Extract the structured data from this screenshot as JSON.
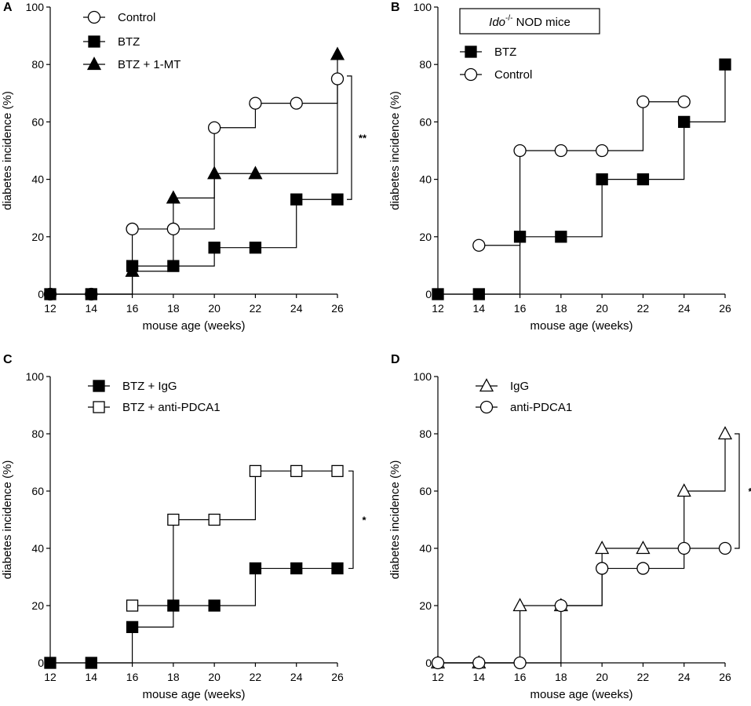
{
  "chart_data": [
    {
      "panel": "A",
      "type": "line",
      "step": true,
      "xlabel": "mouse age (weeks)",
      "ylabel": "diabetes incidence (%)",
      "xlim": [
        12,
        26
      ],
      "ylim": [
        0,
        100
      ],
      "xticks": [
        12,
        14,
        16,
        18,
        20,
        22,
        24,
        26
      ],
      "yticks": [
        0,
        20,
        40,
        60,
        80,
        100
      ],
      "legend_position": "top-left",
      "series": [
        {
          "name": "Control",
          "marker": "circle-open",
          "x": [
            12,
            14,
            16,
            18,
            20,
            22,
            24,
            26
          ],
          "values": [
            0,
            0,
            22.7,
            22.7,
            58,
            66.5,
            66.5,
            75
          ]
        },
        {
          "name": "BTZ",
          "marker": "square-filled",
          "x": [
            12,
            14,
            16,
            18,
            20,
            22,
            24,
            26
          ],
          "values": [
            0,
            0,
            9.8,
            9.8,
            16.2,
            16.2,
            33,
            33
          ]
        },
        {
          "name": "BTZ + 1-MT",
          "marker": "triangle-filled",
          "x": [
            16,
            18,
            20,
            22,
            26
          ],
          "values": [
            8,
            33.5,
            42,
            42,
            83.5
          ]
        }
      ],
      "significance": {
        "label": "**",
        "from": 33,
        "to": 76
      }
    },
    {
      "panel": "B",
      "type": "line",
      "step": true,
      "title": "NOD mice",
      "title_italic": "Ido",
      "title_superscript": "-/-",
      "xlabel": "mouse age (weeks)",
      "ylabel": "diabetes incidence (%)",
      "xlim": [
        12,
        26
      ],
      "ylim": [
        0,
        100
      ],
      "xticks": [
        12,
        14,
        16,
        18,
        20,
        22,
        24,
        26
      ],
      "yticks": [
        0,
        20,
        40,
        60,
        80,
        100
      ],
      "legend_position": "top-left",
      "series": [
        {
          "name": "BTZ",
          "marker": "square-filled",
          "x": [
            12,
            14,
            16,
            18,
            20,
            22,
            24,
            26
          ],
          "values": [
            0,
            0,
            20,
            20,
            40,
            40,
            60,
            80
          ]
        },
        {
          "name": "Control",
          "marker": "circle-open",
          "x": [
            14,
            16,
            18,
            20,
            22,
            24
          ],
          "values": [
            17,
            50,
            50,
            50,
            67,
            67
          ]
        }
      ]
    },
    {
      "panel": "C",
      "type": "line",
      "step": true,
      "xlabel": "mouse age (weeks)",
      "ylabel": "diabetes incidence (%)",
      "xlim": [
        12,
        26
      ],
      "ylim": [
        0,
        100
      ],
      "xticks": [
        12,
        14,
        16,
        18,
        20,
        22,
        24,
        26
      ],
      "yticks": [
        0,
        20,
        40,
        60,
        80,
        100
      ],
      "legend_position": "top-left",
      "series": [
        {
          "name": "BTZ + IgG",
          "marker": "square-filled",
          "x": [
            12,
            14,
            16,
            18,
            20,
            22,
            24,
            26
          ],
          "values": [
            0,
            0,
            12.5,
            20,
            20,
            33,
            33,
            33
          ]
        },
        {
          "name": "BTZ + anti-PDCA1",
          "marker": "square-open",
          "x": [
            16,
            18,
            20,
            22,
            24,
            26
          ],
          "values": [
            20,
            50,
            50,
            67,
            67,
            67
          ]
        }
      ],
      "significance": {
        "label": "*",
        "from": 33,
        "to": 67
      }
    },
    {
      "panel": "D",
      "type": "line",
      "step": true,
      "xlabel": "mouse age (weeks)",
      "ylabel": "diabetes incidence (%)",
      "xlim": [
        12,
        26
      ],
      "ylim": [
        0,
        100
      ],
      "xticks": [
        12,
        14,
        16,
        18,
        20,
        22,
        24,
        26
      ],
      "yticks": [
        0,
        20,
        40,
        60,
        80,
        100
      ],
      "legend_position": "top-left",
      "series": [
        {
          "name": "IgG",
          "marker": "triangle-open",
          "x": [
            12,
            14,
            16,
            18,
            20,
            22,
            24,
            26
          ],
          "values": [
            0,
            0,
            20,
            20,
            40,
            40,
            60,
            80
          ]
        },
        {
          "name": "anti-PDCA1",
          "marker": "circle-open",
          "x": [
            12,
            14,
            16,
            18,
            20,
            22,
            24,
            26
          ],
          "values": [
            0,
            0,
            0,
            20,
            33,
            33,
            40,
            40
          ]
        }
      ],
      "significance": {
        "label": "*",
        "from": 40,
        "to": 80
      }
    }
  ]
}
